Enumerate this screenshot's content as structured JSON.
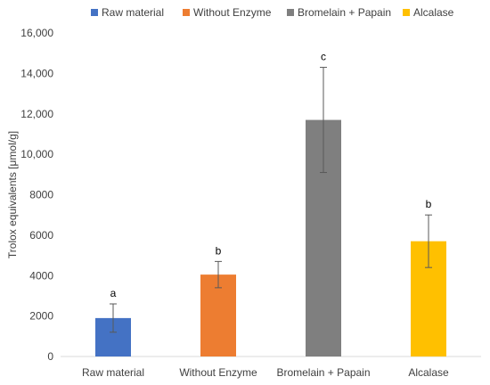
{
  "chart_data": {
    "type": "bar",
    "title": "",
    "xlabel": "",
    "ylabel": "Trolox equivalents [μmol/g]",
    "categories": [
      "Raw material",
      "Without Enzyme",
      "Bromelain + Papain",
      "Alcalase"
    ],
    "values": [
      1900,
      4050,
      11700,
      5700
    ],
    "errors": [
      700,
      650,
      2600,
      1300
    ],
    "significance_labels": [
      "a",
      "b",
      "c",
      "b"
    ],
    "colors": [
      "#4472C4",
      "#ED7D31",
      "#7F7F7F",
      "#FFC000"
    ],
    "ylim": [
      0,
      16000
    ],
    "yticks": [
      0,
      2000,
      4000,
      6000,
      8000,
      10000,
      12000,
      14000,
      16000
    ],
    "ytick_labels": [
      "0",
      "2000",
      "4000",
      "6000",
      "8000",
      "10,000",
      "12,000",
      "14,000",
      "16,000"
    ],
    "grid": false,
    "legend_position": "top",
    "legend": [
      "Raw material",
      "Without Enzyme",
      "Bromelain + Papain",
      "Alcalase"
    ]
  }
}
